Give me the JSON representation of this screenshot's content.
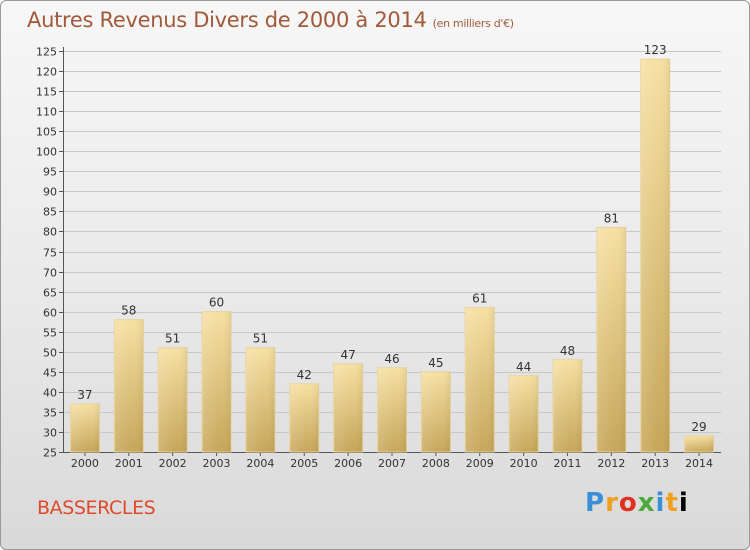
{
  "header": {
    "title": "Autres Revenus Divers de 2000 à 2014",
    "subtitle": "(en milliers d'€)"
  },
  "footer": {
    "place": "BASSERCLES",
    "brand": "Proxiti"
  },
  "colors": {
    "bar_light": "#f5dc9a",
    "bar_dark": "#c9a95a",
    "grid": "#c8c8c8",
    "title": "#a05a3a",
    "place": "#e04a2a"
  },
  "chart_data": {
    "type": "bar",
    "title": "Autres Revenus Divers de 2000 à 2014",
    "categories": [
      "2000",
      "2001",
      "2002",
      "2003",
      "2004",
      "2005",
      "2006",
      "2007",
      "2008",
      "2009",
      "2010",
      "2011",
      "2012",
      "2013",
      "2014"
    ],
    "values": [
      37,
      58,
      51,
      60,
      51,
      42,
      47,
      46,
      45,
      61,
      44,
      48,
      81,
      123,
      29
    ],
    "xlabel": "",
    "ylabel": "",
    "ylim": [
      25,
      125
    ],
    "yticks": [
      25,
      30,
      35,
      40,
      45,
      50,
      55,
      60,
      65,
      70,
      75,
      80,
      85,
      90,
      95,
      100,
      105,
      110,
      115,
      120,
      125
    ],
    "grid": true,
    "data_labels": true
  }
}
